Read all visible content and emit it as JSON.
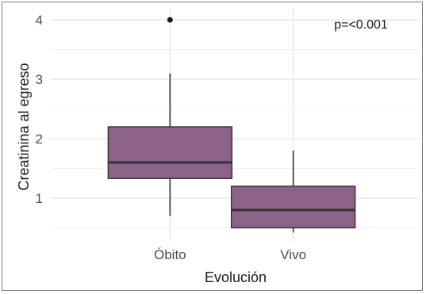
{
  "chart_data": {
    "type": "boxplot",
    "title": "",
    "xlabel": "Evolución",
    "ylabel": "Creatinina al egreso",
    "ylim": [
      0.28,
      4.2
    ],
    "yticks": [
      1,
      2,
      3,
      4
    ],
    "grid": true,
    "annotation": "p=<0.001",
    "fill_color": "#8c6289",
    "categories": [
      "Óbito",
      "Vivo"
    ],
    "boxes": [
      {
        "category": "Óbito",
        "whisker_low": 0.7,
        "q1": 1.33,
        "median": 1.6,
        "q3": 2.2,
        "whisker_high": 3.1,
        "outliers": [
          4.0
        ]
      },
      {
        "category": "Vivo",
        "whisker_low": 0.42,
        "q1": 0.5,
        "median": 0.8,
        "q3": 1.2,
        "whisker_high": 1.8,
        "outliers": []
      }
    ]
  }
}
